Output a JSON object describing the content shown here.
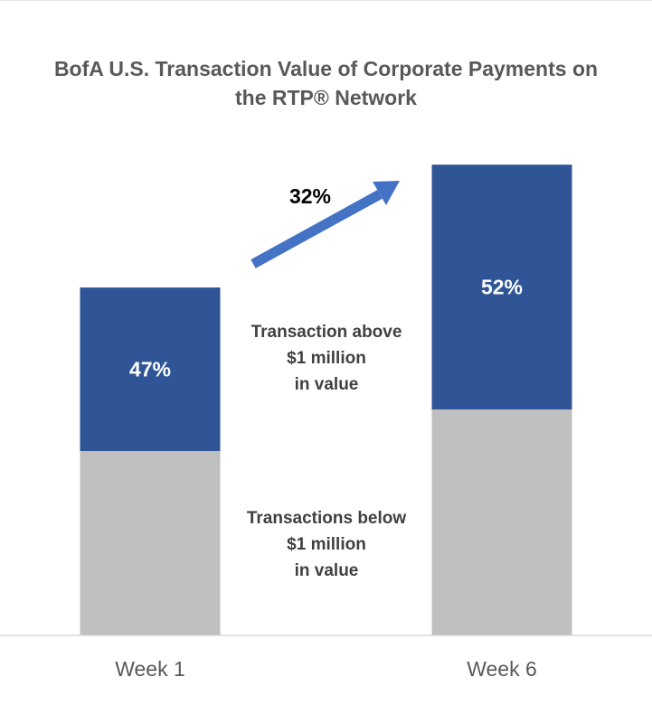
{
  "chart_data": {
    "type": "bar",
    "stacked": true,
    "title": "BofA U.S. Transaction Value of Corporate Payments on the RTP® Network",
    "title_lines": [
      "BofA U.S. Transaction Value of Corporate Payments on",
      "the RTP® Network"
    ],
    "categories": [
      "Week 1",
      "Week 6"
    ],
    "series": [
      {
        "values": [
          53,
          48
        ],
        "color": "#bfbfbf"
      },
      {
        "values": [
          47,
          52
        ],
        "color": "#2f5597",
        "data_labels": [
          "47%",
          "52%"
        ]
      }
    ],
    "annotations": {
      "upper_segment": [
        "Transaction above",
        "$1 million",
        "in value"
      ],
      "lower_segment": [
        "Transactions below",
        "$1 million",
        "in value"
      ],
      "growth": "32%"
    },
    "arrow_color": "#4472c4",
    "grid": false,
    "legend": "none"
  }
}
